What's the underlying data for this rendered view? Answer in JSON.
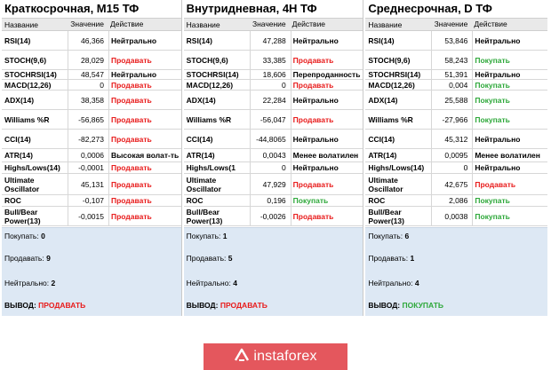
{
  "header": {
    "name": "Название",
    "value": "Значение",
    "action": "Действие"
  },
  "panels": [
    {
      "title": "Краткосрочная, M15 ТФ",
      "rows": [
        {
          "name": "RSI(14)",
          "value": "46,366",
          "action": "Нейтрально",
          "kind": "neutral"
        },
        {
          "name": "STOCH(9,6)",
          "value": "28,029",
          "action": "Продавать",
          "kind": "sell"
        },
        {
          "name": "STOCHRSI(14)",
          "value": "48,547",
          "action": "Нейтрально",
          "kind": "neutral"
        },
        {
          "name": "MACD(12,26)",
          "value": "0",
          "action": "Продавать",
          "kind": "sell"
        },
        {
          "name": "ADX(14)",
          "value": "38,358",
          "action": "Продавать",
          "kind": "sell"
        },
        {
          "name": "Williams %R",
          "value": "-56,865",
          "action": "Продавать",
          "kind": "sell"
        },
        {
          "name": "CCI(14)",
          "value": "-82,273",
          "action": "Продавать",
          "kind": "sell"
        },
        {
          "name": "ATR(14)",
          "value": "0,0006",
          "action": "Высокая волат-ть",
          "kind": "neutral"
        },
        {
          "name": "Highs/Lows(14)",
          "value": "-0,0001",
          "action": "Продавать",
          "kind": "sell"
        },
        {
          "name": "Ultimate\nOscillator",
          "value": "45,131",
          "action": "Продавать",
          "kind": "sell"
        },
        {
          "name": "ROC",
          "value": "-0,107",
          "action": "Продавать",
          "kind": "sell"
        },
        {
          "name": "Bull/Bear\nPower(13)",
          "value": "-0,0015",
          "action": "Продавать",
          "kind": "sell"
        }
      ],
      "summary": {
        "buy_label": "Покупать:",
        "buy": "0",
        "sell_label": "Продавать:",
        "sell": "9",
        "neutral_label": "Нейтрально:",
        "neutral": "2",
        "verdict_label": "ВЫВОД:",
        "verdict": "ПРОДАВАТЬ",
        "verdict_kind": "sell"
      }
    },
    {
      "title": "Внутридневная, 4H ТФ",
      "rows": [
        {
          "name": "RSI(14)",
          "value": "47,288",
          "action": "Нейтрально",
          "kind": "neutral"
        },
        {
          "name": "STOCH(9,6)",
          "value": "33,385",
          "action": "Продавать",
          "kind": "sell"
        },
        {
          "name": "STOCHRSI(14)",
          "value": "18,606",
          "action": "Перепроданность",
          "kind": "neutral"
        },
        {
          "name": "MACD(12,26)",
          "value": "0",
          "action": "Продавать",
          "kind": "sell"
        },
        {
          "name": "ADX(14)",
          "value": "22,284",
          "action": "Нейтрально",
          "kind": "neutral"
        },
        {
          "name": "Williams %R",
          "value": "-56,047",
          "action": "Продавать",
          "kind": "sell"
        },
        {
          "name": "CCI(14)",
          "value": "-44,8065",
          "action": "Нейтрально",
          "kind": "neutral"
        },
        {
          "name": "ATR(14)",
          "value": "0,0043",
          "action": "Менее волатилен",
          "kind": "neutral"
        },
        {
          "name": "Highs/Lows(1",
          "value": "0",
          "action": "Нейтрально",
          "kind": "neutral"
        },
        {
          "name": "Ultimate\nOscillator",
          "value": "47,929",
          "action": "Продавать",
          "kind": "sell"
        },
        {
          "name": "ROC",
          "value": "0,196",
          "action": "Покупать",
          "kind": "buy"
        },
        {
          "name": "Bull/Bear\nPower(13)",
          "value": "-0,0026",
          "action": "Продавать",
          "kind": "sell"
        }
      ],
      "summary": {
        "buy_label": "Покупать:",
        "buy": "1",
        "sell_label": "Продавать:",
        "sell": "5",
        "neutral_label": "Нейтрально:",
        "neutral": "4",
        "verdict_label": "ВЫВОД:",
        "verdict": "ПРОДАВАТЬ",
        "verdict_kind": "sell"
      }
    },
    {
      "title": "Среднесрочная, D ТФ",
      "rows": [
        {
          "name": "RSI(14)",
          "value": "53,846",
          "action": "Нейтрально",
          "kind": "neutral"
        },
        {
          "name": "STOCH(9,6)",
          "value": "58,243",
          "action": "Покупать",
          "kind": "buy"
        },
        {
          "name": "STOCHRSI(14)",
          "value": "51,391",
          "action": "Нейтрально",
          "kind": "neutral"
        },
        {
          "name": "MACD(12,26)",
          "value": "0,004",
          "action": "Покупать",
          "kind": "buy"
        },
        {
          "name": "ADX(14)",
          "value": "25,588",
          "action": "Покупать",
          "kind": "buy"
        },
        {
          "name": "Williams %R",
          "value": "-27,966",
          "action": "Покупать",
          "kind": "buy"
        },
        {
          "name": "CCI(14)",
          "value": "45,312",
          "action": "Нейтрально",
          "kind": "neutral"
        },
        {
          "name": "ATR(14)",
          "value": "0,0095",
          "action": "Менее волатилен",
          "kind": "neutral"
        },
        {
          "name": "Highs/Lows(14)",
          "value": "0",
          "action": "Нейтрально",
          "kind": "neutral"
        },
        {
          "name": "Ultimate\nOscillator",
          "value": "42,675",
          "action": "Продавать",
          "kind": "sell"
        },
        {
          "name": "ROC",
          "value": "2,086",
          "action": "Покупать",
          "kind": "buy"
        },
        {
          "name": "Bull/Bear\nPower(13)",
          "value": "0,0038",
          "action": "Покупать",
          "kind": "buy"
        }
      ],
      "summary": {
        "buy_label": "Покупать:",
        "buy": "6",
        "sell_label": "Продавать:",
        "sell": "1",
        "neutral_label": "Нейтрально:",
        "neutral": "4",
        "verdict_label": "ВЫВОД:",
        "verdict": "ПОКУПАТЬ",
        "verdict_kind": "buy"
      }
    }
  ],
  "colors": {
    "sell": "#e81b1b",
    "buy": "#2ea83a",
    "summary_bg": "#dde8f4",
    "brand_bg": "#e4575d"
  },
  "brand": {
    "text": "instaforex",
    "icon": "instaforex-logo-icon"
  }
}
